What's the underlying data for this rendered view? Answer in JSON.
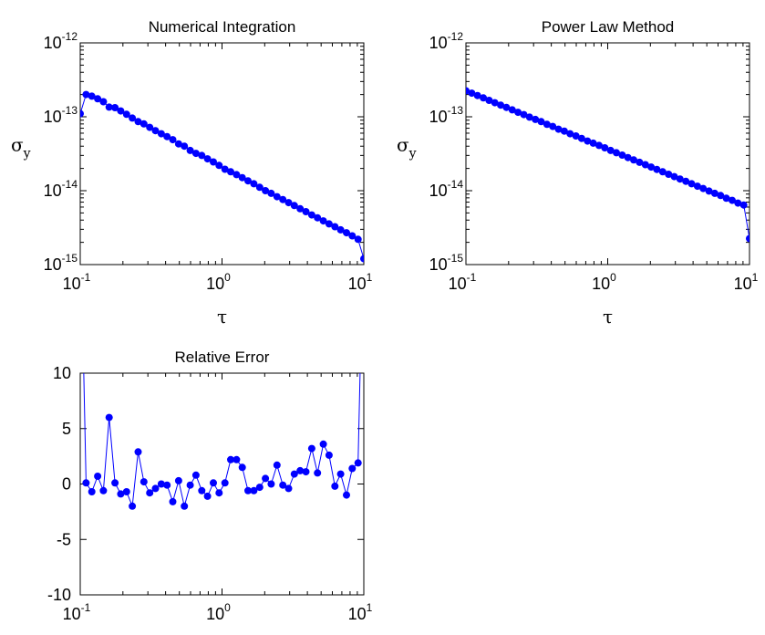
{
  "chart_data": [
    {
      "type": "scatter",
      "title": "Numerical Integration",
      "xlabel": "τ",
      "ylabel": "σ",
      "ylabel_sub": "y",
      "xscale": "log",
      "yscale": "log",
      "xlim": [
        0.1,
        10
      ],
      "ylim": [
        1e-15,
        1e-12
      ],
      "grid": false,
      "x_ticks": [
        {
          "base": "10",
          "exp": "-1"
        },
        {
          "base": "10",
          "exp": "0"
        },
        {
          "base": "10",
          "exp": "1"
        }
      ],
      "y_ticks": [
        {
          "base": "10",
          "exp": "-15"
        },
        {
          "base": "10",
          "exp": "-14"
        },
        {
          "base": "10",
          "exp": "-13"
        },
        {
          "base": "10",
          "exp": "-12"
        }
      ],
      "series": [
        {
          "color": "#0000ff",
          "marker": "circle",
          "x": [
            0.1,
            0.1099,
            0.1207,
            0.1326,
            0.1456,
            0.16,
            0.1758,
            0.1931,
            0.2121,
            0.233,
            0.256,
            0.2812,
            0.3089,
            0.3393,
            0.3728,
            0.4095,
            0.4498,
            0.4942,
            0.5429,
            0.5964,
            0.6551,
            0.7197,
            0.7906,
            0.8685,
            0.9541,
            1.048,
            1.151,
            1.265,
            1.389,
            1.526,
            1.677,
            1.842,
            2.024,
            2.223,
            2.442,
            2.683,
            2.947,
            3.237,
            3.556,
            3.907,
            4.292,
            4.715,
            5.179,
            5.69,
            6.25,
            6.866,
            7.543,
            8.286,
            9.103,
            10.0
          ],
          "y": [
            1.1e-13,
            2e-13,
            1.9e-13,
            1.75e-13,
            1.6e-13,
            1.35e-13,
            1.33e-13,
            1.2e-13,
            1.08e-13,
            9.6e-14,
            8.6e-14,
            8e-14,
            7.2e-14,
            6.5e-14,
            5.9e-14,
            5.4e-14,
            4.9e-14,
            4.3e-14,
            4e-14,
            3.5e-14,
            3.2e-14,
            3e-14,
            2.7e-14,
            2.45e-14,
            2.2e-14,
            1.95e-14,
            1.8e-14,
            1.65e-14,
            1.5e-14,
            1.36e-14,
            1.24e-14,
            1.11e-14,
            1e-14,
            9.2e-15,
            8.3e-15,
            7.6e-15,
            6.9e-15,
            6.3e-15,
            5.7e-15,
            5.2e-15,
            4.7e-15,
            4.3e-15,
            3.9e-15,
            3.55e-15,
            3.25e-15,
            2.95e-15,
            2.7e-15,
            2.45e-15,
            2.2e-15,
            1.2e-15
          ]
        }
      ]
    },
    {
      "type": "scatter",
      "title": "Power Law Method",
      "xlabel": "τ",
      "ylabel": "σ",
      "ylabel_sub": "y",
      "xscale": "log",
      "yscale": "log",
      "xlim": [
        0.1,
        10
      ],
      "ylim": [
        1e-15,
        1e-12
      ],
      "grid": false,
      "x_ticks": [
        {
          "base": "10",
          "exp": "-1"
        },
        {
          "base": "10",
          "exp": "0"
        },
        {
          "base": "10",
          "exp": "1"
        }
      ],
      "y_ticks": [
        {
          "base": "10",
          "exp": "-15"
        },
        {
          "base": "10",
          "exp": "-14"
        },
        {
          "base": "10",
          "exp": "-13"
        },
        {
          "base": "10",
          "exp": "-12"
        }
      ],
      "series": [
        {
          "color": "#0000ff",
          "marker": "circle",
          "x": [
            0.1,
            0.1099,
            0.1207,
            0.1326,
            0.1456,
            0.16,
            0.1758,
            0.1931,
            0.2121,
            0.233,
            0.256,
            0.2812,
            0.3089,
            0.3393,
            0.3728,
            0.4095,
            0.4498,
            0.4942,
            0.5429,
            0.5964,
            0.6551,
            0.7197,
            0.7906,
            0.8685,
            0.9541,
            1.048,
            1.151,
            1.265,
            1.389,
            1.526,
            1.677,
            1.842,
            2.024,
            2.223,
            2.442,
            2.683,
            2.947,
            3.237,
            3.556,
            3.907,
            4.292,
            4.715,
            5.179,
            5.69,
            6.25,
            6.866,
            7.543,
            8.286,
            9.103,
            10.0
          ],
          "y": [
            2.25e-13,
            2.09e-13,
            1.94e-13,
            1.8e-13,
            1.67e-13,
            1.55e-13,
            1.44e-13,
            1.34e-13,
            1.24e-13,
            1.15e-13,
            1.07e-13,
            9.9e-14,
            9.2e-14,
            8.6e-14,
            7.9e-14,
            7.4e-14,
            6.8e-14,
            6.4e-14,
            5.9e-14,
            5.5e-14,
            5.1e-14,
            4.7e-14,
            4.4e-14,
            4.1e-14,
            3.8e-14,
            3.5e-14,
            3.26e-14,
            3.03e-14,
            2.81e-14,
            2.61e-14,
            2.42e-14,
            2.25e-14,
            2.09e-14,
            1.94e-14,
            1.8e-14,
            1.67e-14,
            1.55e-14,
            1.44e-14,
            1.34e-14,
            1.24e-14,
            1.15e-14,
            1.07e-14,
            9.9e-15,
            9.2e-15,
            8.6e-15,
            7.9e-15,
            7.4e-15,
            6.8e-15,
            6.4e-15,
            2.25e-15
          ]
        }
      ]
    },
    {
      "type": "line",
      "title": "Relative Error",
      "xlabel": "",
      "ylabel": "",
      "xscale": "log",
      "yscale": "linear",
      "xlim": [
        0.1,
        10
      ],
      "ylim": [
        -10,
        10
      ],
      "grid": false,
      "x_ticks": [
        {
          "base": "10",
          "exp": "-1"
        },
        {
          "base": "10",
          "exp": "0"
        },
        {
          "base": "10",
          "exp": "1"
        }
      ],
      "y_ticks": [
        "-10",
        "-5",
        "0",
        "5",
        "10"
      ],
      "y_tick_values": [
        -10,
        -5,
        0,
        5,
        10
      ],
      "series": [
        {
          "color": "#0000ff",
          "marker": "circle",
          "x": [
            0.1,
            0.1099,
            0.1207,
            0.1326,
            0.1456,
            0.16,
            0.1758,
            0.1931,
            0.2121,
            0.233,
            0.256,
            0.2812,
            0.3089,
            0.3393,
            0.3728,
            0.4095,
            0.4498,
            0.4942,
            0.5429,
            0.5964,
            0.6551,
            0.7197,
            0.7906,
            0.8685,
            0.9541,
            1.048,
            1.151,
            1.265,
            1.389,
            1.526,
            1.677,
            1.842,
            2.024,
            2.223,
            2.442,
            2.683,
            2.947,
            3.237,
            3.556,
            3.907,
            4.292,
            4.715,
            5.179,
            5.69,
            6.25,
            6.866,
            7.543,
            8.286,
            9.103,
            10.0
          ],
          "y": [
            25,
            0.1,
            -0.7,
            0.7,
            -0.6,
            6.0,
            0.1,
            -0.9,
            -0.7,
            -2.0,
            2.9,
            0.2,
            -0.8,
            -0.4,
            0.0,
            -0.1,
            -1.6,
            0.3,
            -2.0,
            -0.1,
            0.8,
            -0.6,
            -1.1,
            0.1,
            -0.8,
            0.1,
            2.2,
            2.2,
            1.5,
            -0.6,
            -0.6,
            -0.3,
            0.5,
            0.0,
            1.7,
            -0.1,
            -0.4,
            0.9,
            1.2,
            1.1,
            3.2,
            1.0,
            3.6,
            2.6,
            -0.2,
            0.9,
            -1.0,
            1.4,
            1.9,
            25
          ]
        }
      ]
    }
  ]
}
